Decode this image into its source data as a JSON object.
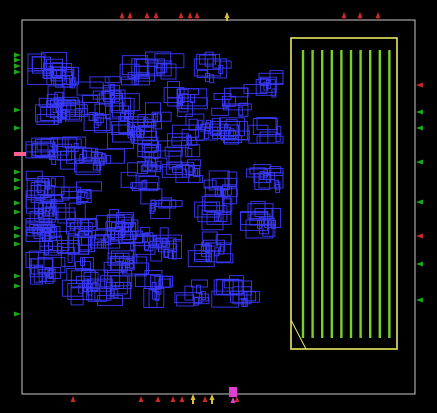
{
  "view": {
    "kind": "chip-layout-placement-view",
    "colors": {
      "background": "#000000",
      "die_outline": "#c8c8c8",
      "cell_outline": "#3a3aff",
      "macro_outline": "#e8e860",
      "macro_stripe": "#7ad02a",
      "pin_top_bottom": "#c82828",
      "pin_left_right": "#1aa81a",
      "pin_power": "#d8c030",
      "pin_highlight": "#e040d0",
      "pin_pink": "#ff6090"
    },
    "macro": {
      "stripe_count": 10
    }
  }
}
